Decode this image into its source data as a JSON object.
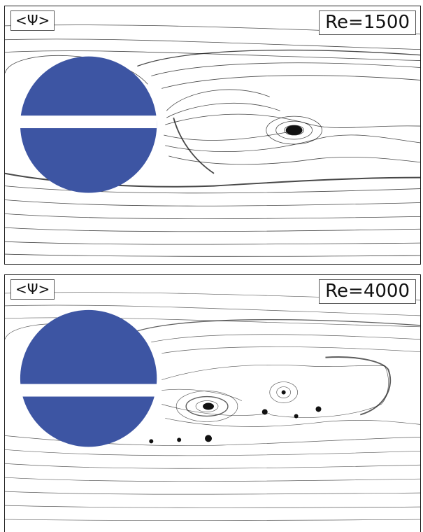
{
  "colors": {
    "cylinder": "#3d55a3",
    "streamline": "#1a1a1a",
    "background": "#ffffff"
  },
  "panels": [
    {
      "psi_label": "<Ψ>",
      "re_label": "Re=1500"
    },
    {
      "psi_label": "<Ψ>",
      "re_label": "Re=4000"
    }
  ]
}
